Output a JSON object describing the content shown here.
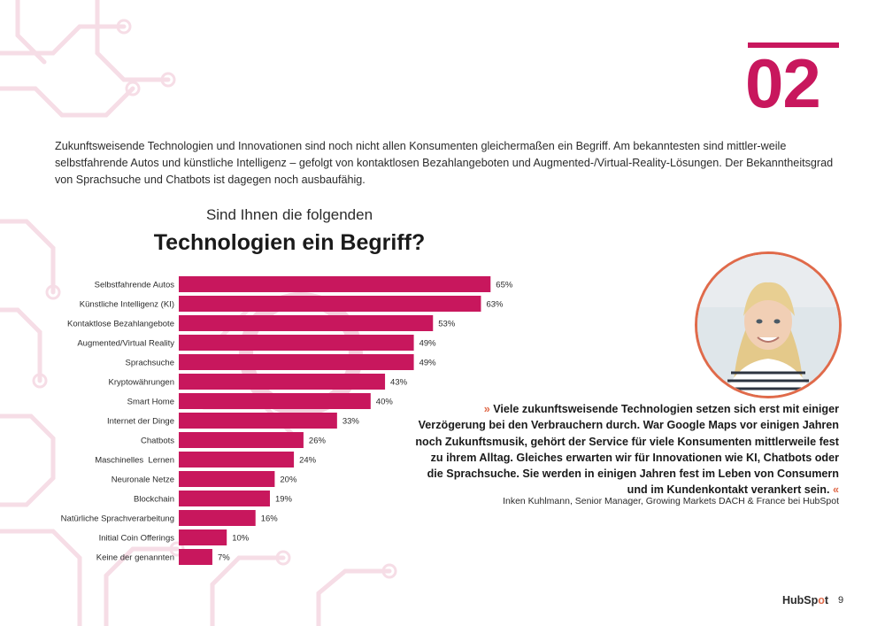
{
  "chapter_number": "02",
  "intro_text": "Zukunftsweisende Technologien und Innovationen sind noch nicht allen Konsumenten gleichermaßen ein Begriff. Am bekanntesten sind mittler-weile selbstfahrende Autos und künstliche Intelligenz – gefolgt von kontaktlosen Bezahlangeboten und Augmented-/Virtual-Reality-Lösungen. Der Bekanntheitsgrad von Sprachsuche und Chatbots ist dagegen noch ausbaufähig.",
  "question": {
    "line1": "Sind Ihnen die folgenden",
    "line2": "Technologien ein Begriff?"
  },
  "chart_data": {
    "type": "bar",
    "orientation": "horizontal",
    "title": "Sind Ihnen die folgenden Technologien ein Begriff?",
    "categories": [
      "Selbstfahrende Autos",
      "Künstliche Intelligenz (KI)",
      "Kontaktlose Bezahlangebote",
      "Augmented/Virtual Reality",
      "Sprachsuche",
      "Kryptowährungen",
      "Smart Home",
      "Internet der Dinge",
      "Chatbots",
      "Maschinelles  Lernen",
      "Neuronale Netze",
      "Blockchain",
      "Natürliche Sprachverarbeitung",
      "Initial Coin Offerings",
      "Keine der genannten"
    ],
    "values": [
      65,
      63,
      53,
      49,
      49,
      43,
      40,
      33,
      26,
      24,
      20,
      19,
      16,
      10,
      7
    ],
    "value_labels": [
      "65%",
      "63%",
      "53%",
      "49%",
      "49%",
      "43%",
      "40%",
      "33%",
      "26%",
      "24%",
      "20%",
      "19%",
      "16%",
      "10%",
      "7%"
    ],
    "unit": "%",
    "xlim": [
      0,
      100
    ],
    "grid": false,
    "bar_color": "#c8175d"
  },
  "quote": {
    "open_mark": "»",
    "text": "Viele zukunftsweisende Technologien setzen sich erst mit einiger Verzögerung bei den Verbrauchern durch. War Google Maps vor einigen Jahren noch Zukunftsmusik, gehört der Service für viele Konsumenten mittlerweile fest zu ihrem Alltag. Gleiches erwarten wir für Innovationen wie KI, Chatbots oder die Sprachsuche. Sie werden in einigen Jahren fest im Leben von Consumern und im Kundenkontakt verankert sein.",
    "close_mark": "«",
    "attribution": "Inken Kuhlmann, Senior Manager, Growing Markets DACH & France bei HubSpot"
  },
  "logo": {
    "part1": "HubSp",
    "part2": "o",
    "part3": "t"
  },
  "page_number": "9",
  "colors": {
    "accent": "#c8175d",
    "quote_mark": "#e06a4a",
    "circuit": "#f6dde6"
  }
}
